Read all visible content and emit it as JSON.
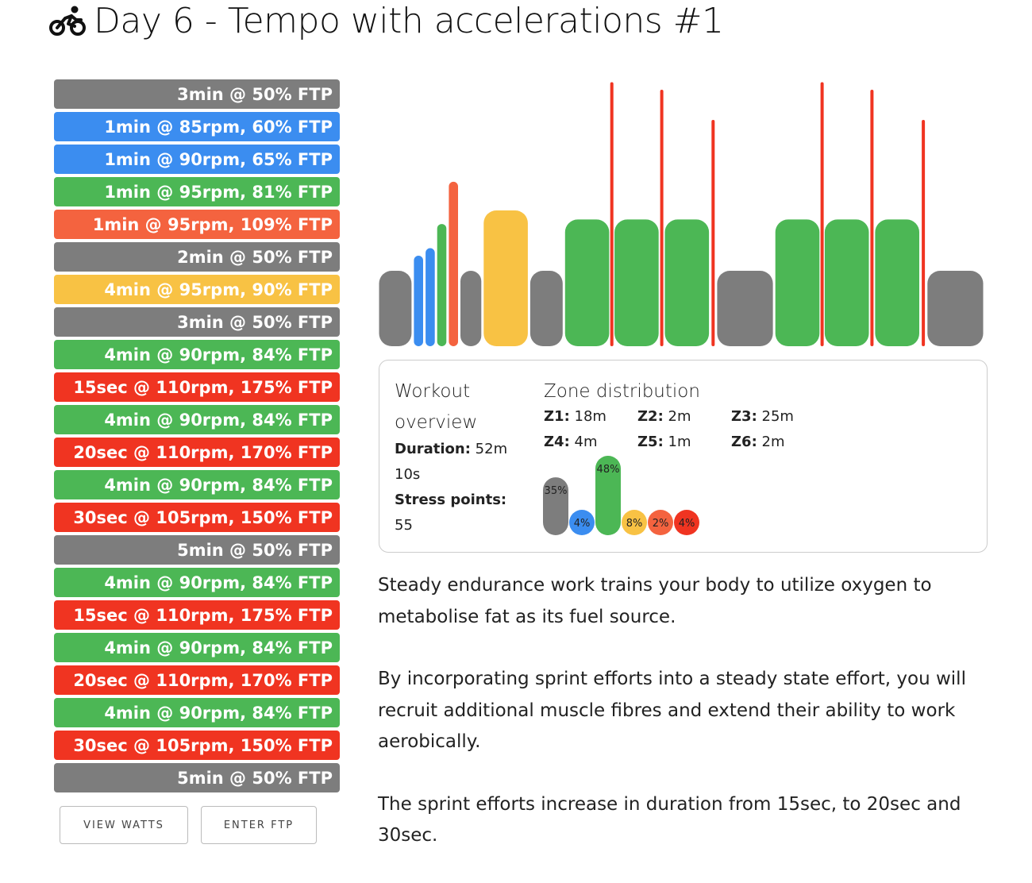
{
  "title": "Day 6 - Tempo with accelerations #1",
  "icon": "bicycle-rider-icon",
  "colors": {
    "z1": "#7d7d7d",
    "z2": "#3b8df0",
    "z3": "#4cb755",
    "z4": "#f8c244",
    "z5": "#f4633f",
    "z6": "#f03421"
  },
  "steps": [
    {
      "label": "3min @ 50% FTP",
      "zone": "z1"
    },
    {
      "label": "1min @ 85rpm, 60% FTP",
      "zone": "z2"
    },
    {
      "label": "1min @ 90rpm, 65% FTP",
      "zone": "z2"
    },
    {
      "label": "1min @ 95rpm, 81% FTP",
      "zone": "z3"
    },
    {
      "label": "1min @ 95rpm, 109% FTP",
      "zone": "z5"
    },
    {
      "label": "2min @ 50% FTP",
      "zone": "z1"
    },
    {
      "label": "4min @ 95rpm, 90% FTP",
      "zone": "z4"
    },
    {
      "label": "3min @ 50% FTP",
      "zone": "z1"
    },
    {
      "label": "4min @ 90rpm, 84% FTP",
      "zone": "z3"
    },
    {
      "label": "15sec @ 110rpm, 175% FTP",
      "zone": "z6"
    },
    {
      "label": "4min @ 90rpm, 84% FTP",
      "zone": "z3"
    },
    {
      "label": "20sec @ 110rpm, 170% FTP",
      "zone": "z6"
    },
    {
      "label": "4min @ 90rpm, 84% FTP",
      "zone": "z3"
    },
    {
      "label": "30sec @ 105rpm, 150% FTP",
      "zone": "z6"
    },
    {
      "label": "5min @ 50% FTP",
      "zone": "z1"
    },
    {
      "label": "4min @ 90rpm, 84% FTP",
      "zone": "z3"
    },
    {
      "label": "15sec @ 110rpm, 175% FTP",
      "zone": "z6"
    },
    {
      "label": "4min @ 90rpm, 84% FTP",
      "zone": "z3"
    },
    {
      "label": "20sec @ 110rpm, 170% FTP",
      "zone": "z6"
    },
    {
      "label": "4min @ 90rpm, 84% FTP",
      "zone": "z3"
    },
    {
      "label": "30sec @ 105rpm, 150% FTP",
      "zone": "z6"
    },
    {
      "label": "5min @ 50% FTP",
      "zone": "z1"
    }
  ],
  "buttons": {
    "view_watts": "VIEW WATTS",
    "enter_ftp": "ENTER FTP"
  },
  "overview": {
    "title": "Workout overview",
    "duration_label": "Duration:",
    "duration_value": "52m 10s",
    "stress_label": "Stress points:",
    "stress_value": "55"
  },
  "zone_distribution": {
    "title": "Zone distribution",
    "zones": [
      {
        "key": "Z1",
        "label": "Z1:",
        "time": "18m",
        "pct": 35,
        "pct_label": "35%",
        "color": "#7d7d7d"
      },
      {
        "key": "Z2",
        "label": "Z2:",
        "time": "2m",
        "pct": 4,
        "pct_label": "4%",
        "color": "#3b8df0"
      },
      {
        "key": "Z3",
        "label": "Z3:",
        "time": "25m",
        "pct": 48,
        "pct_label": "48%",
        "color": "#4cb755"
      },
      {
        "key": "Z4",
        "label": "Z4:",
        "time": "4m",
        "pct": 8,
        "pct_label": "8%",
        "color": "#f8c244"
      },
      {
        "key": "Z5",
        "label": "Z5:",
        "time": "1m",
        "pct": 2,
        "pct_label": "2%",
        "color": "#f4633f"
      },
      {
        "key": "Z6",
        "label": "Z6:",
        "time": "2m",
        "pct": 4,
        "pct_label": "4%",
        "color": "#f03421"
      }
    ]
  },
  "description": [
    "Steady endurance work trains your body to utilize oxygen to metabolise fat as its fuel source.",
    "By incorporating sprint efforts into a steady state effort, you will recruit additional muscle fibres and extend their ability to work aerobically.",
    "The sprint efforts increase in duration from 15sec, to 20sec and 30sec."
  ],
  "profile_chart": {
    "type": "bar",
    "segments": [
      {
        "duration_s": 180,
        "ftp_pct": 50,
        "zone": "z1"
      },
      {
        "duration_s": 60,
        "ftp_pct": 60,
        "zone": "z2"
      },
      {
        "duration_s": 60,
        "ftp_pct": 65,
        "zone": "z2"
      },
      {
        "duration_s": 60,
        "ftp_pct": 81,
        "zone": "z3"
      },
      {
        "duration_s": 60,
        "ftp_pct": 109,
        "zone": "z5"
      },
      {
        "duration_s": 120,
        "ftp_pct": 50,
        "zone": "z1"
      },
      {
        "duration_s": 240,
        "ftp_pct": 90,
        "zone": "z4"
      },
      {
        "duration_s": 180,
        "ftp_pct": 50,
        "zone": "z1"
      },
      {
        "duration_s": 240,
        "ftp_pct": 84,
        "zone": "z3"
      },
      {
        "duration_s": 15,
        "ftp_pct": 175,
        "zone": "z6"
      },
      {
        "duration_s": 240,
        "ftp_pct": 84,
        "zone": "z3"
      },
      {
        "duration_s": 20,
        "ftp_pct": 170,
        "zone": "z6"
      },
      {
        "duration_s": 240,
        "ftp_pct": 84,
        "zone": "z3"
      },
      {
        "duration_s": 30,
        "ftp_pct": 150,
        "zone": "z6"
      },
      {
        "duration_s": 300,
        "ftp_pct": 50,
        "zone": "z1"
      },
      {
        "duration_s": 240,
        "ftp_pct": 84,
        "zone": "z3"
      },
      {
        "duration_s": 15,
        "ftp_pct": 175,
        "zone": "z6"
      },
      {
        "duration_s": 240,
        "ftp_pct": 84,
        "zone": "z3"
      },
      {
        "duration_s": 20,
        "ftp_pct": 170,
        "zone": "z6"
      },
      {
        "duration_s": 240,
        "ftp_pct": 84,
        "zone": "z3"
      },
      {
        "duration_s": 30,
        "ftp_pct": 150,
        "zone": "z6"
      },
      {
        "duration_s": 300,
        "ftp_pct": 50,
        "zone": "z1"
      }
    ]
  }
}
